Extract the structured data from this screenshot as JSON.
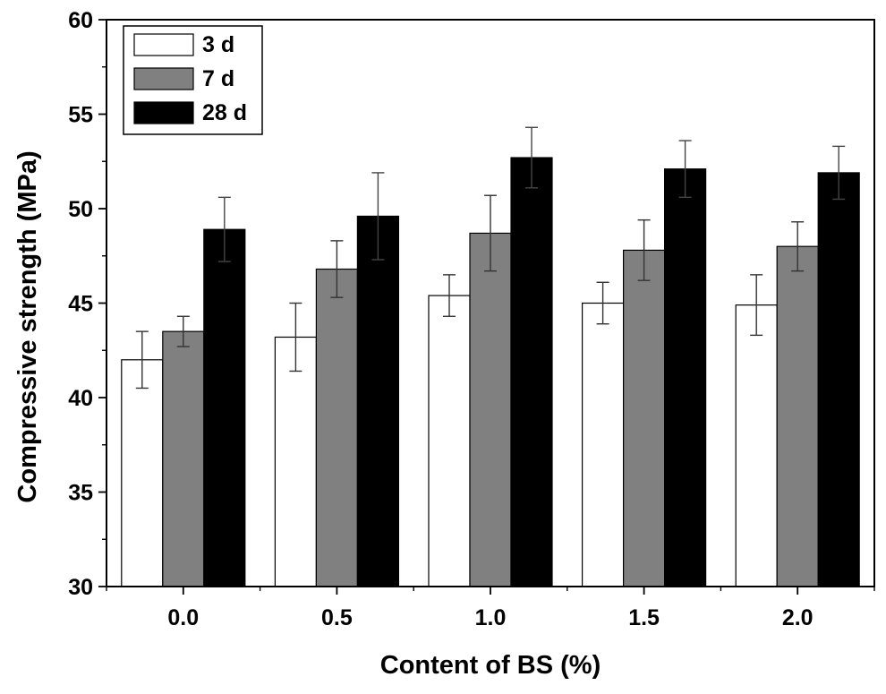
{
  "chart_data": {
    "type": "bar",
    "title": "",
    "xlabel": "Content of BS (%)",
    "ylabel": "Compressive strength (MPa)",
    "ylim": [
      30,
      60
    ],
    "yticks": [
      30,
      35,
      40,
      45,
      50,
      55,
      60
    ],
    "ytick_labels": [
      "30",
      "35",
      "40",
      "45",
      "50",
      "55",
      "60"
    ],
    "categories": [
      "0.0",
      "0.5",
      "1.0",
      "1.5",
      "2.0"
    ],
    "legend_position": "top-left",
    "series": [
      {
        "name": "3 d",
        "color": "#ffffff",
        "values": [
          42.0,
          43.2,
          45.4,
          45.0,
          44.9
        ],
        "errors": [
          1.5,
          1.8,
          1.1,
          1.1,
          1.6
        ]
      },
      {
        "name": "7 d",
        "color": "#808080",
        "values": [
          43.5,
          46.8,
          48.7,
          47.8,
          48.0
        ],
        "errors": [
          0.8,
          1.5,
          2.0,
          1.6,
          1.3
        ]
      },
      {
        "name": "28 d",
        "color": "#000000",
        "values": [
          48.9,
          49.6,
          52.7,
          52.1,
          51.9
        ],
        "errors": [
          1.7,
          2.3,
          1.6,
          1.5,
          1.4
        ]
      }
    ]
  }
}
